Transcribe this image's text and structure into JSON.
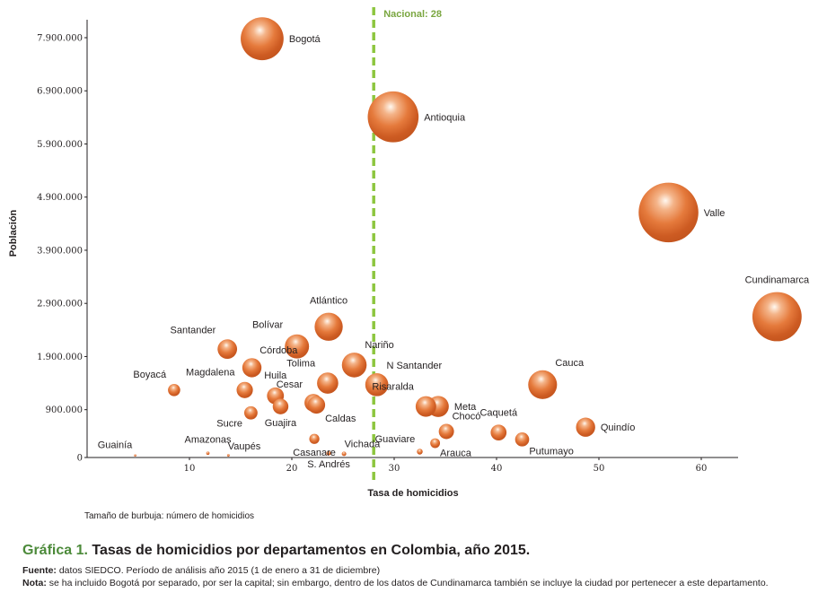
{
  "chart_data": {
    "type": "scatter",
    "subtype": "bubble",
    "title": "Tasas de homicidios por departamentos en Colombia, año 2015.",
    "figure_label": "Gráfica 1.",
    "xlabel": "Tasa de homicidios",
    "ylabel": "Población",
    "xlim": [
      0,
      70
    ],
    "ylim": [
      0,
      7900000
    ],
    "x_ticks": [
      10,
      20,
      30,
      40,
      50,
      60
    ],
    "x_tick_labels": [
      "10",
      "20",
      "30",
      "40",
      "50",
      "60"
    ],
    "y_ticks": [
      0,
      900000,
      1900000,
      2900000,
      3900000,
      4900000,
      5900000,
      6900000,
      7900000
    ],
    "y_tick_labels": [
      "0",
      "900.000",
      "1.900.000",
      "2.900.000",
      "3.900.000",
      "4.900.000",
      "5.900.000",
      "6.900.000",
      "7.900.000"
    ],
    "grid": false,
    "size_legend": "Tamaño de burbuja: número de homicidios",
    "reference_line": {
      "axis": "x",
      "value": 28,
      "label": "Nacional: 28",
      "color": "#8dc63f",
      "style": "dashed"
    },
    "bubble_color": "#e07030",
    "points": [
      {
        "name": "Bogotá",
        "x": 17.1,
        "y": 7880000,
        "size": 1350,
        "label_pos": "right"
      },
      {
        "name": "Antioquia",
        "x": 29.9,
        "y": 6410000,
        "size": 1900,
        "label_pos": "right"
      },
      {
        "name": "Valle",
        "x": 56.8,
        "y": 4610000,
        "size": 2620,
        "label_pos": "right"
      },
      {
        "name": "Cundinamarca",
        "x": 67.4,
        "y": 2650000,
        "size": 1780,
        "label_pos": "top"
      },
      {
        "name": "Atlántico",
        "x": 23.6,
        "y": 2460000,
        "size": 580,
        "label_pos": "top"
      },
      {
        "name": "Santander",
        "x": 13.7,
        "y": 2040000,
        "size": 280,
        "label_pos": "top-left"
      },
      {
        "name": "Bolívar",
        "x": 20.5,
        "y": 2090000,
        "size": 430,
        "label_pos": "top-left"
      },
      {
        "name": "Córdoba",
        "x": 16.1,
        "y": 1690000,
        "size": 270,
        "label_pos": "top-right"
      },
      {
        "name": "Nariño",
        "x": 26.1,
        "y": 1740000,
        "size": 450,
        "label_pos": "top-right"
      },
      {
        "name": "Boyacá",
        "x": 8.5,
        "y": 1270000,
        "size": 110,
        "label_pos": "top-left"
      },
      {
        "name": "Magdalena",
        "x": 15.4,
        "y": 1270000,
        "size": 195,
        "label_pos": "top-left"
      },
      {
        "name": "Huila",
        "x": 18.4,
        "y": 1160000,
        "size": 210,
        "label_pos": "top"
      },
      {
        "name": "Tolima",
        "x": 23.5,
        "y": 1400000,
        "size": 330,
        "label_pos": "top-left"
      },
      {
        "name": "N Santander",
        "x": 28.3,
        "y": 1370000,
        "size": 390,
        "label_pos": "top-right"
      },
      {
        "name": "Cesar",
        "x": 22.1,
        "y": 1030000,
        "size": 230,
        "label_pos": "top-left"
      },
      {
        "name": "Caldas",
        "x": 22.4,
        "y": 990000,
        "size": 225,
        "label_pos": "bottom-right"
      },
      {
        "name": "Guajira",
        "x": 18.9,
        "y": 960000,
        "size": 180,
        "label_pos": "bottom"
      },
      {
        "name": "Sucre",
        "x": 16.0,
        "y": 840000,
        "size": 130,
        "label_pos": "bottom-left"
      },
      {
        "name": "Cauca",
        "x": 44.5,
        "y": 1370000,
        "size": 610,
        "label_pos": "top-right"
      },
      {
        "name": "Risaralda",
        "x": 33.1,
        "y": 960000,
        "size": 310,
        "label_pos": "top-left"
      },
      {
        "name": "Meta",
        "x": 34.3,
        "y": 960000,
        "size": 330,
        "label_pos": "right"
      },
      {
        "name": "Chocó",
        "x": 35.1,
        "y": 490000,
        "size": 170,
        "label_pos": "top-right"
      },
      {
        "name": "Caquetá",
        "x": 40.2,
        "y": 470000,
        "size": 185,
        "label_pos": "top"
      },
      {
        "name": "Putumayo",
        "x": 42.5,
        "y": 340000,
        "size": 145,
        "label_pos": "bottom-right"
      },
      {
        "name": "Quindío",
        "x": 48.7,
        "y": 570000,
        "size": 270,
        "label_pos": "right"
      },
      {
        "name": "Casanare",
        "x": 22.2,
        "y": 350000,
        "size": 75,
        "label_pos": "bottom"
      },
      {
        "name": "Arauca",
        "x": 34.0,
        "y": 270000,
        "size": 70,
        "label_pos": "bottom-right"
      },
      {
        "name": "Guaviare",
        "x": 32.5,
        "y": 110000,
        "size": 25,
        "label_pos": "top-left"
      },
      {
        "name": "S. Andrés",
        "x": 23.6,
        "y": 80000,
        "size": 15,
        "label_pos": "bottom"
      },
      {
        "name": "Vichada",
        "x": 25.1,
        "y": 70000,
        "size": 15,
        "label_pos": "top-right"
      },
      {
        "name": "Amazonas",
        "x": 11.8,
        "y": 80000,
        "size": 8,
        "label_pos": "top"
      },
      {
        "name": "Vaupés",
        "x": 13.8,
        "y": 40000,
        "size": 5,
        "label_pos": "top-right"
      },
      {
        "name": "Guainía",
        "x": 4.7,
        "y": 40000,
        "size": 3,
        "label_pos": "top-left"
      }
    ]
  },
  "caption": {
    "figure_label": "Gráfica 1.",
    "title": "Tasas de homicidios por departamentos en Colombia, año 2015.",
    "source_lead": "Fuente:",
    "source_text": "datos SIEDCO. Período de análisis año 2015 (1 de enero a 31 de diciembre)",
    "note_lead": "Nota:",
    "note_text": "se ha incluido Bogotá por separado, por ser la capital; sin embargo, dentro de los datos de Cundinamarca también se incluye la ciudad por pertenecer a este departamento."
  }
}
